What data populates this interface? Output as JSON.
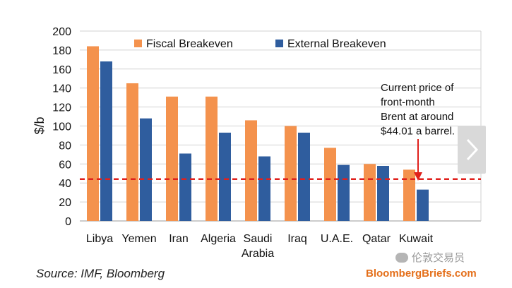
{
  "chart_data": {
    "type": "bar",
    "categories": [
      "Libya",
      "Yemen",
      "Iran",
      "Algeria",
      "Saudi\nArabia",
      "Iraq",
      "U.A.E.",
      "Qatar",
      "Kuwait"
    ],
    "series": [
      {
        "name": "Fiscal Breakeven",
        "color": "#f4924d",
        "values": [
          184,
          145,
          131,
          131,
          106,
          100,
          77,
          60,
          54
        ]
      },
      {
        "name": "External Breakeven",
        "color": "#2f5d9e",
        "values": [
          168,
          108,
          71,
          93,
          68,
          93,
          59,
          58,
          33
        ]
      }
    ],
    "ylabel": "$/b",
    "ylim": [
      0,
      200
    ],
    "yticks": [
      0,
      20,
      40,
      60,
      80,
      100,
      120,
      140,
      160,
      180,
      200
    ],
    "reference_line": {
      "value": 44.01,
      "color": "#e0201c",
      "style": "dashed"
    },
    "annotation": {
      "lines": [
        "Current price of",
        "front-month",
        "Brent at around",
        "$44.01 a barrel."
      ],
      "target_category": "Kuwait",
      "arrow_color": "#e0201c"
    },
    "legend_position": "top"
  },
  "footer": {
    "source": "Source: IMF, Bloomberg",
    "watermark": "伦敦交易员",
    "site": "BloombergBriefs.com"
  },
  "nav": {
    "next_icon": "chevron-right-icon"
  }
}
